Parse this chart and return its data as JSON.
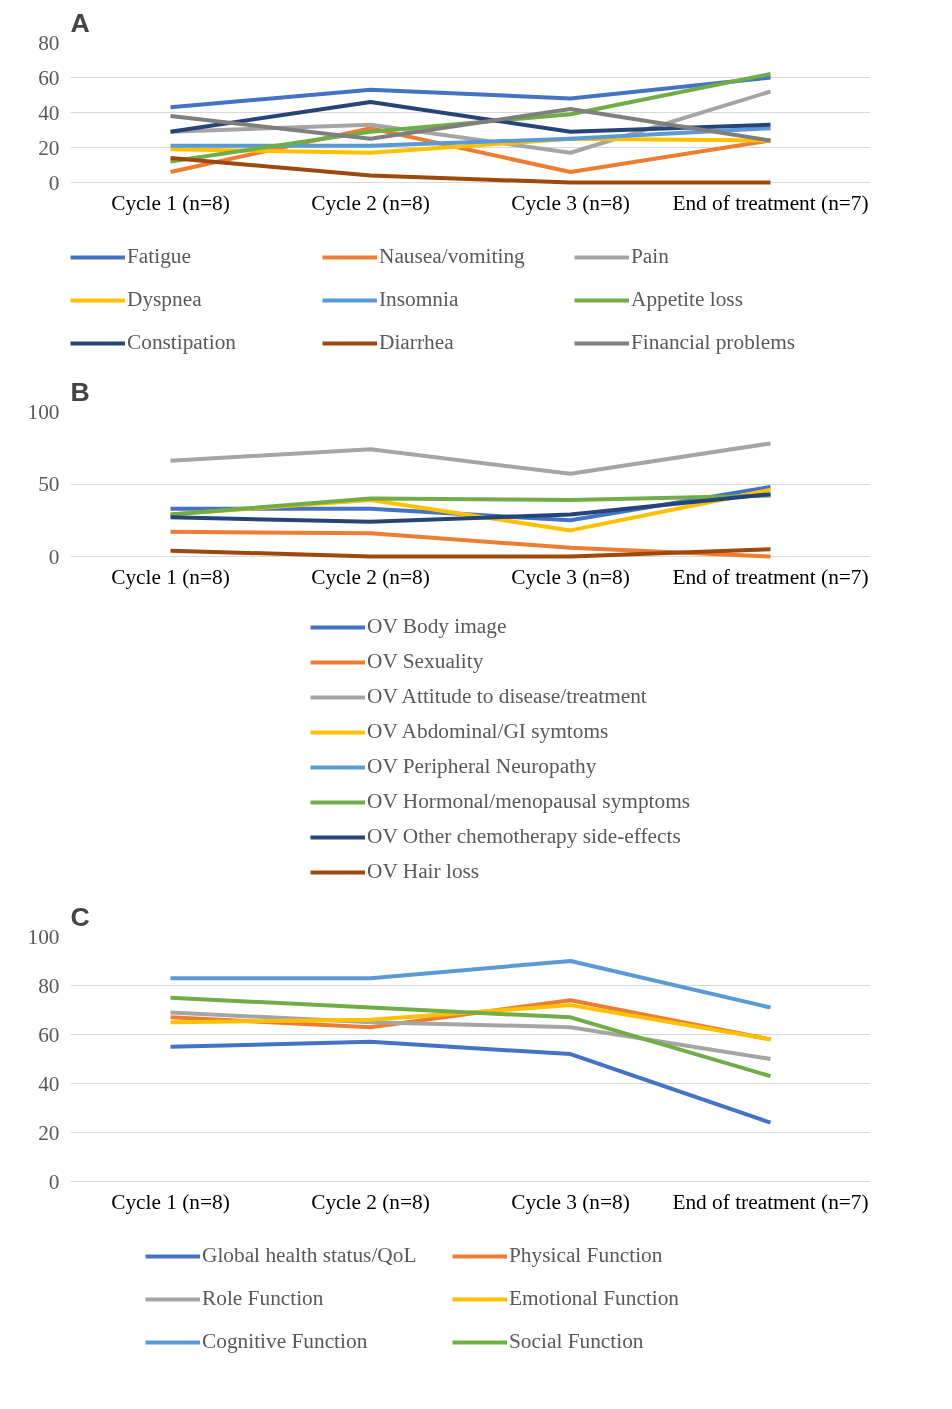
{
  "chart_data": [
    {
      "type": "line",
      "title": "A",
      "categories": [
        "Cycle 1 (n=8)",
        "Cycle 2 (n=8)",
        "Cycle 3 (n=8)",
        "End of treatment (n=7)"
      ],
      "ylim": [
        0,
        80
      ],
      "yticks": [
        0,
        20,
        40,
        60,
        80
      ],
      "grid": "y",
      "legend": "bottom",
      "marker": "none",
      "line_style": "solid",
      "series": [
        {
          "name": "Fatigue",
          "color": "#4472c4",
          "values": [
            43,
            53,
            48,
            60
          ]
        },
        {
          "name": "Nausea/vomiting",
          "color": "#ed7d31",
          "values": [
            6,
            31,
            6,
            24
          ]
        },
        {
          "name": "Pain",
          "color": "#a5a5a5",
          "values": [
            29,
            33,
            17,
            52
          ]
        },
        {
          "name": "Dyspnea",
          "color": "#ffc000",
          "values": [
            19,
            17,
            25,
            24
          ]
        },
        {
          "name": "Insomnia",
          "color": "#5b9bd5",
          "values": [
            21,
            21,
            25,
            31
          ]
        },
        {
          "name": "Appetite loss",
          "color": "#70ad47",
          "values": [
            12,
            29,
            39,
            62
          ]
        },
        {
          "name": "Constipation",
          "color": "#264478",
          "values": [
            29,
            46,
            29,
            33
          ]
        },
        {
          "name": "Diarrhea",
          "color": "#9e480e",
          "values": [
            14,
            4,
            0,
            0
          ]
        },
        {
          "name": "Financial problems",
          "color": "#7f7f7f",
          "values": [
            38,
            25,
            42,
            24
          ]
        }
      ]
    },
    {
      "type": "line",
      "title": "B",
      "categories": [
        "Cycle 1 (n=8)",
        "Cycle 2 (n=8)",
        "Cycle 3 (n=8)",
        "End of treatment (n=7)"
      ],
      "ylim": [
        0,
        100
      ],
      "yticks": [
        0,
        50,
        100
      ],
      "grid": "y",
      "legend": "bottom",
      "marker": "none",
      "line_style": "solid",
      "series": [
        {
          "name": "OV Body image",
          "color": "#4472c4",
          "values": [
            33,
            33,
            25,
            48
          ]
        },
        {
          "name": "OV Sexuality",
          "color": "#ed7d31",
          "values": [
            17,
            16,
            6,
            0
          ]
        },
        {
          "name": "OV Attitude to disease/treatment",
          "color": "#a5a5a5",
          "values": [
            66,
            74,
            57,
            78
          ]
        },
        {
          "name": "OV Abdominal/GI symtoms",
          "color": "#ffc000",
          "values": [
            29,
            39,
            18,
            46
          ]
        },
        {
          "name": "OV Peripheral Neuropathy",
          "color": "#5b9bd5",
          "values": [
            null,
            null,
            null,
            null
          ]
        },
        {
          "name": "OV Hormonal/menopausal symptoms",
          "color": "#70ad47",
          "values": [
            29,
            40,
            39,
            42
          ]
        },
        {
          "name": "OV Other chemotherapy side-effects",
          "color": "#264478",
          "values": [
            27,
            24,
            29,
            43
          ]
        },
        {
          "name": "OV Hair loss",
          "color": "#9e480e",
          "values": [
            4,
            0,
            0,
            5
          ]
        }
      ]
    },
    {
      "type": "line",
      "title": "C",
      "categories": [
        "Cycle 1 (n=8)",
        "Cycle 2 (n=8)",
        "Cycle 3 (n=8)",
        "End of treatment (n=7)"
      ],
      "ylim": [
        0,
        100
      ],
      "yticks": [
        0,
        20,
        40,
        60,
        80,
        100
      ],
      "grid": "y",
      "legend": "bottom",
      "marker": "none",
      "line_style": "solid",
      "series": [
        {
          "name": "Global health status/QoL",
          "color": "#4472c4",
          "values": [
            55,
            57,
            52,
            24
          ]
        },
        {
          "name": "Physical Function",
          "color": "#ed7d31",
          "values": [
            67,
            63,
            74,
            58
          ]
        },
        {
          "name": "Role Function",
          "color": "#a5a5a5",
          "values": [
            69,
            65,
            63,
            50
          ]
        },
        {
          "name": "Emotional Function",
          "color": "#ffc000",
          "values": [
            65,
            66,
            72,
            58
          ]
        },
        {
          "name": "Cognitive Function",
          "color": "#5b9bd5",
          "values": [
            83,
            83,
            90,
            71
          ]
        },
        {
          "name": "Social Function",
          "color": "#70ad47",
          "values": [
            75,
            71,
            67,
            43
          ]
        }
      ]
    }
  ]
}
